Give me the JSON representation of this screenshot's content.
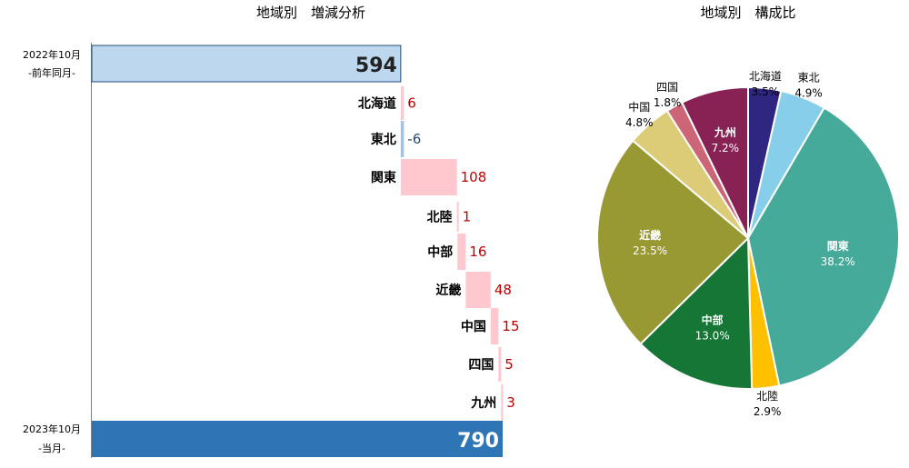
{
  "chart_data": [
    {
      "type": "bar",
      "subtype": "waterfall",
      "title": "地域別　増減分析",
      "start": {
        "label_line1": "2022年10月",
        "label_line2": "-前年同月-",
        "value": 594,
        "value_label": "594"
      },
      "end": {
        "label_line1": "2023年10月",
        "label_line2": "-当月-",
        "value": 790,
        "value_label": "790"
      },
      "categories": [
        "北海道",
        "東北",
        "関東",
        "北陸",
        "中部",
        "近畿",
        "中国",
        "四国",
        "九州"
      ],
      "values": [
        6,
        -6,
        108,
        1,
        16,
        48,
        15,
        5,
        3
      ],
      "value_labels": [
        "6",
        "-6",
        "108",
        "1",
        "16",
        "48",
        "15",
        "5",
        "3"
      ],
      "colors": {
        "start": "#bdd7ee",
        "end": "#2e75b6",
        "increase": "#ffc7ce",
        "decrease": "#9dc3e6",
        "increase_text": "#c00000",
        "decrease_text": "#1f4e79"
      }
    },
    {
      "type": "pie",
      "title": "地域別　構成比",
      "slices": [
        {
          "name": "北海道",
          "value": 3.5,
          "label": "3.5%",
          "color": "#2e2680"
        },
        {
          "name": "東北",
          "value": 4.9,
          "label": "4.9%",
          "color": "#87ceeb"
        },
        {
          "name": "関東",
          "value": 38.2,
          "label": "38.2%",
          "color": "#45aa99"
        },
        {
          "name": "北陸",
          "value": 2.9,
          "label": "2.9%",
          "color": "#ffc000"
        },
        {
          "name": "中部",
          "value": 13.0,
          "label": "13.0%",
          "color": "#167636"
        },
        {
          "name": "近畿",
          "value": 23.5,
          "label": "23.5%",
          "color": "#999933"
        },
        {
          "name": "中国",
          "value": 4.8,
          "label": "4.8%",
          "color": "#dccc77"
        },
        {
          "name": "四国",
          "value": 1.8,
          "label": "1.8%",
          "color": "#cc6677"
        },
        {
          "name": "九州",
          "value": 7.2,
          "label": "7.2%",
          "color": "#882255"
        }
      ]
    }
  ]
}
